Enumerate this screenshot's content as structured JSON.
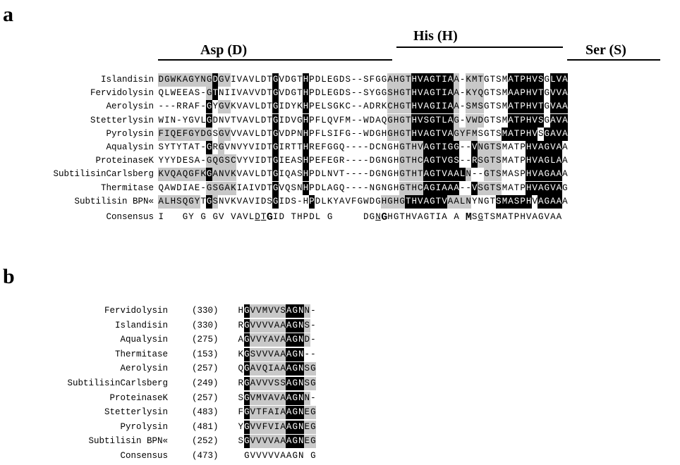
{
  "panels": [
    {
      "letter": "a",
      "domains": [
        {
          "label": "Asp (D)",
          "bar_start": 0,
          "bar_end": 39
        },
        {
          "label": "His (H)",
          "bar_start": 39,
          "bar_end": 67
        },
        {
          "label": "Ser (S)",
          "bar_start": 67,
          "bar_end": 82
        }
      ],
      "rows": [
        {
          "name": "Islandisin",
          "seq": "DGWKAGYNGDGVIVAVLDTGVDGTHPDLEGDS--SFGGAHGTHVAGTIAA-KMTGTSMATPHVSGLVA",
          "mask": "gggggggggkggwwwwwwwkwwwwkwwwwwwwwwwwggggkkkkkkkggggwwwwkkkkkkwkkkkwggwggw"
        },
        {
          "name": "Fervidolysin",
          "seq": "QLWEEAS-GTNIIVAVVDTGVDGTHPDLEGDS--SYGGSHGTHVAGTIAA-KYQGTSMAAPHVTGVVA",
          "mask": "wwwwwww-gkwwwwwwwwwkwwwwkwwwwwwwwwwwggggkkkkkkkggggwwwwkkkkkkwkkkkwggwggw"
        },
        {
          "name": "Aerolysin",
          "seq": "---RRAF-GYGVKVAVLDTGIDYKHPELSGKC--ADRKCHGTHVAGIIAA-SMSGTSMATPHVTGVAA",
          "mask": "---wwww-kwggwwwwwwwkwwwwkwwwwwwwwwwwggggkkkkkkkggggwwwwkkkkkkwkkkkwggwggw"
        },
        {
          "name": "Stetterlysin",
          "seq": "WIN-YGVLGDNVTVAVLDTGIDVGHPFLQVFM--WDAQGHGTHVSGTLAG-VWDGTSMATPHVSGAVA",
          "mask": "www-wwwwkwwwwwwwwwwkwwwwkwwwwwwwwwwwggggkkkkkkkggggwwwwkkkkkkwkkkkwggwggw"
        },
        {
          "name": "Pyrolysin",
          "seq": "FIQEFGYDGSGVVVAVLDTGVDPNHPFLSIFG--WDGHGHGTHVAGTVAGYFMSGTSMATPHVSGAVA",
          "mask": "gggggggggwggwwwwwwwkwwwwkwwwwwwwwwwwggggkkkkkkkggggwwwwkkkkkkwkkkkwggwggw"
        },
        {
          "name": "Aqualysin",
          "seq": "SYTYTAT-GRGVNVYVIDTGIRTTHREFGGQ----DCNGHGTHVAGTIGG--VNGTSMATPHVAGVAA",
          "mask": "wwwwwww-kwgwwwwwwwwkwwwwkwwwwwwwwwwwggggkkkkkkkggggwwwwkkkkkkwkkkkwggwggw"
        },
        {
          "name": "ProteinaseK",
          "seq": "YYYDESA-GQGSCVYVIDTGIEASHPEFEGR----DGNGHGTHCAGTVGS--RSGTSMATPHVAGLAA",
          "mask": "wwwwwww-gggggwwwwwwkwwwwkwwwwwwwwwwwggggkkkkkkkggggwwwwkkkkkkwkkkkwggwggw"
        },
        {
          "name": "SubtilisinCarlsberg",
          "seq": "KVQAQGFKGANVKVAVLDTGIQASHPDLNVT----DGNGHGTHTAGTVAALN--GTSMASPHVAGAAA",
          "mask": "ggggggggkggggwwwwwwkwwwwkwwwwwwwwwwwggggkkkkkkkggggwwwwkkkkkkwkkkkwggwggw"
        },
        {
          "name": "Thermitase",
          "seq": "QAWDIAE-GSGAKIAIVDTGVQSNHPDLAGQ----NGNGHGTHCAGIAAA--VSGTSMATPHVAGVAG",
          "mask": "wwwwwww-gggggwwwwwwkwwwwkwwwwwwwwwwwggggkkkkkkkggggwwwwkkkkkkwkkkkwggwggw"
        },
        {
          "name": "Subtilisin BPN«",
          "seq": "ALHSQGYTGSNVKVAVIDSGIDS-HPDLKYAVFGWDGHGHGTHVAGTVAALNYNGTSMASPHVAGAAA",
          "mask": "gggggggwkgwwwwwwwwwkwwww-kwwwwwwwwwwwggggkkkkkkkggggwwwwkkkkkkwkkkkwggwggw"
        }
      ],
      "consensus": {
        "name": "Consensus",
        "seq": "I   GY G GV VAVLDTGID THPDL G     DGNGHGTHVAGTIA A MSGTSMATPHVAGVAA"
      }
    },
    {
      "letter": "b",
      "rows": [
        {
          "name": "Fervidolysin",
          "num": "(330)",
          "seq": "HGVVMVVSAGNN-",
          "mask": "wkggggggkkkgw"
        },
        {
          "name": "Islandisin",
          "num": "(330)",
          "seq": "RGVVVVAAAGNS-",
          "mask": "wkggggggkkkgw"
        },
        {
          "name": "Aqualysin",
          "num": "(275)",
          "seq": "AGVVYAVAAGND-",
          "mask": "wkggggggkkkgw"
        },
        {
          "name": "Thermitase",
          "num": "(153)",
          "seq": "KGSVVVAAAGN--",
          "mask": "wkggggggkkkww"
        },
        {
          "name": "Aerolysin",
          "num": "(257)",
          "seq": "QGAVQIAAAGNSG",
          "mask": "wkggggggkkkgg"
        },
        {
          "name": "SubtilisinCarlsberg",
          "num": "(249)",
          "seq": "RGAVVVSSAGNSG",
          "mask": "wkggggggkkkgg"
        },
        {
          "name": "ProteinaseK",
          "num": "(257)",
          "seq": "SGVMVAVAAGNN-",
          "mask": "wkggggggkkkgw"
        },
        {
          "name": "Stetterlysin",
          "num": "(483)",
          "seq": "FGVTFAIAAGNEG",
          "mask": "wkggggggkkkgg"
        },
        {
          "name": "Pyrolysin",
          "num": "(481)",
          "seq": "YGVVFVIAAGNEG",
          "mask": "wkggggggkkkgg"
        },
        {
          "name": "Subtilisin BPN«",
          "num": "(252)",
          "seq": "SGVVVVAAAGNEG",
          "mask": "wkggggggkkkgg"
        }
      ],
      "consensus": {
        "name": "Consensus",
        "num": "(473)",
        "seq": " GVVVVVAAGN G"
      }
    }
  ]
}
